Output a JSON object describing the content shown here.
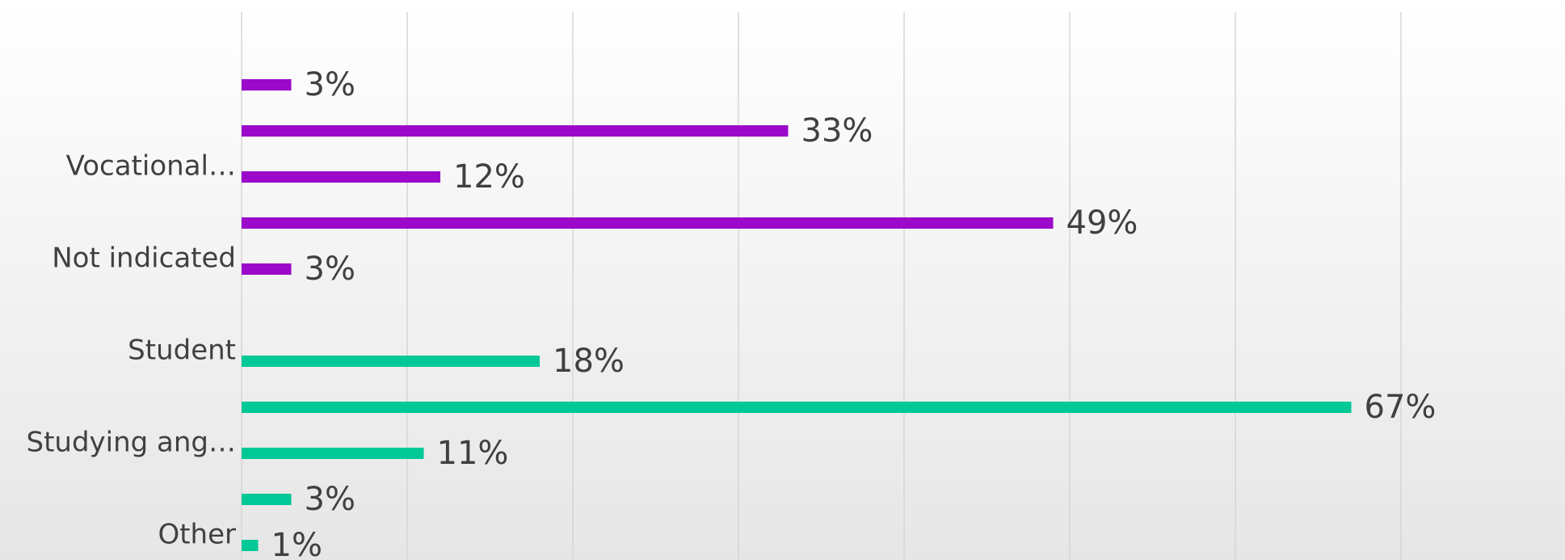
{
  "chart_data": {
    "type": "barh",
    "categories": [
      null,
      null,
      "Vocational…",
      null,
      "Not indicated",
      "Student",
      null,
      "Studying ang…",
      null,
      "Other"
    ],
    "values": [
      3,
      33,
      12,
      49,
      3,
      18,
      67,
      11,
      3,
      1
    ],
    "value_labels": [
      "3%",
      "33%",
      "12%",
      "49%",
      "3%",
      "18%",
      "67%",
      "11%",
      "3%",
      "1%"
    ],
    "colors": [
      "#9b09c9",
      "#9b09c9",
      "#9b09c9",
      "#9b09c9",
      "#9b09c9",
      "#00c896",
      "#00c896",
      "#00c896",
      "#00c896",
      "#00c896"
    ],
    "xlim": [
      0,
      80
    ],
    "xticks": [
      0,
      10,
      20,
      30,
      40,
      50,
      60,
      70
    ],
    "grid": true
  }
}
